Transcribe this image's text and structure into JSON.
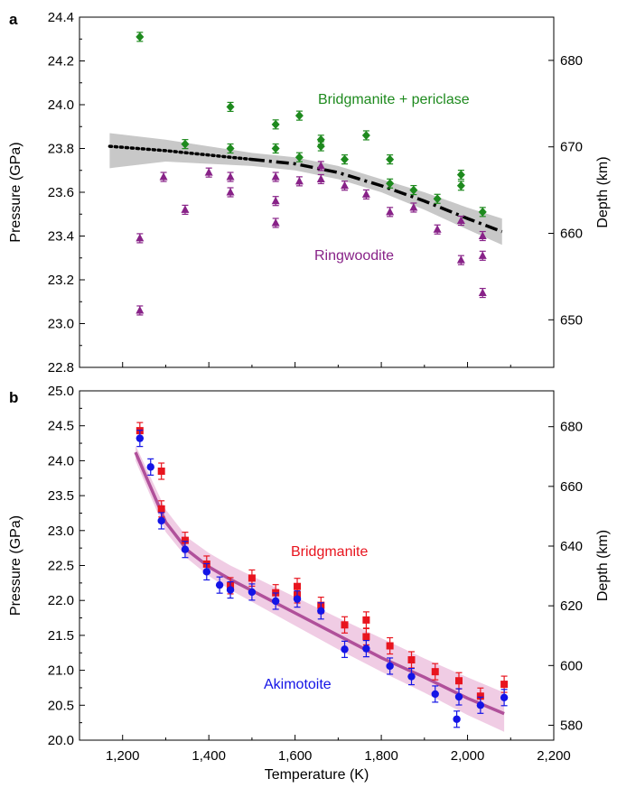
{
  "chart_data": [
    {
      "panel": "a",
      "type": "scatter",
      "xlabel": "",
      "ylabel": "Pressure (GPa)",
      "y2label": "Depth (km)",
      "xlim": [
        1100,
        2200
      ],
      "ylim": [
        22.8,
        24.4
      ],
      "y2lim": [
        644.5,
        685.0
      ],
      "xticks": [],
      "yticks": [
        22.8,
        23.0,
        23.2,
        23.4,
        23.6,
        23.8,
        24.0,
        24.2,
        24.4
      ],
      "ytick_labels": [
        "22.8",
        "23.0",
        "23.2",
        "23.4",
        "23.6",
        "23.8",
        "24.0",
        "24.2",
        "24.4"
      ],
      "y2ticks": [
        650,
        660,
        670,
        680
      ],
      "y2tick_labels": [
        "650",
        "660",
        "670",
        "680"
      ],
      "grid": false,
      "series": [
        {
          "name": "Bridgmanite + periclase",
          "marker": "diamond",
          "color": "#1e8a1e",
          "points": [
            [
              1240,
              24.31
            ],
            [
              1345,
              23.82
            ],
            [
              1450,
              23.99
            ],
            [
              1450,
              23.8
            ],
            [
              1555,
              23.91
            ],
            [
              1555,
              23.8
            ],
            [
              1610,
              23.95
            ],
            [
              1610,
              23.76
            ],
            [
              1660,
              23.84
            ],
            [
              1660,
              23.81
            ],
            [
              1715,
              23.75
            ],
            [
              1765,
              23.86
            ],
            [
              1820,
              23.75
            ],
            [
              1820,
              23.64
            ],
            [
              1875,
              23.61
            ],
            [
              1930,
              23.57
            ],
            [
              1985,
              23.68
            ],
            [
              1985,
              23.63
            ],
            [
              2035,
              23.51
            ]
          ]
        },
        {
          "name": "Ringwoodite",
          "marker": "triangle",
          "color": "#882288",
          "points": [
            [
              1240,
              23.39
            ],
            [
              1240,
              23.06
            ],
            [
              1295,
              23.67
            ],
            [
              1345,
              23.52
            ],
            [
              1400,
              23.69
            ],
            [
              1450,
              23.67
            ],
            [
              1450,
              23.6
            ],
            [
              1555,
              23.67
            ],
            [
              1555,
              23.56
            ],
            [
              1555,
              23.46
            ],
            [
              1610,
              23.65
            ],
            [
              1660,
              23.72
            ],
            [
              1660,
              23.66
            ],
            [
              1715,
              23.63
            ],
            [
              1765,
              23.59
            ],
            [
              1820,
              23.51
            ],
            [
              1875,
              23.53
            ],
            [
              1930,
              23.43
            ],
            [
              1985,
              23.47
            ],
            [
              1985,
              23.29
            ],
            [
              2035,
              23.4
            ],
            [
              2035,
              23.31
            ],
            [
              2035,
              23.14
            ]
          ]
        }
      ],
      "fit_line": {
        "style": "dotted-then-dashdot",
        "color": "#000000",
        "x": [
          1170,
          1300,
          1400,
          1500,
          1600,
          1700,
          1800,
          1900,
          2000,
          2080
        ],
        "y": [
          23.81,
          23.79,
          23.77,
          23.75,
          23.73,
          23.69,
          23.63,
          23.56,
          23.48,
          23.42
        ],
        "band_color": "#c8c8c8",
        "band_upper": [
          23.87,
          23.84,
          23.81,
          23.78,
          23.76,
          23.72,
          23.66,
          23.6,
          23.53,
          23.48
        ],
        "band_lower": [
          23.71,
          23.74,
          23.73,
          23.72,
          23.7,
          23.66,
          23.6,
          23.52,
          23.43,
          23.36
        ]
      },
      "annotations": [
        {
          "text": "Bridgmanite + periclase",
          "color": "#1e8a1e"
        },
        {
          "text": "Ringwoodite",
          "color": "#882288"
        }
      ]
    },
    {
      "panel": "b",
      "type": "scatter",
      "xlabel": "Temperature (K)",
      "ylabel": "Pressure (GPa)",
      "y2label": "Depth (km)",
      "xlim": [
        1100,
        2200
      ],
      "ylim": [
        20.0,
        25.0
      ],
      "y2lim": [
        575.0,
        692.0
      ],
      "xticks": [
        1200,
        1400,
        1600,
        1800,
        2000,
        2200
      ],
      "xtick_labels": [
        "1,200",
        "1,400",
        "1,600",
        "1,800",
        "2,000",
        "2,200"
      ],
      "yticks": [
        20.0,
        20.5,
        21.0,
        21.5,
        22.0,
        22.5,
        23.0,
        23.5,
        24.0,
        24.5,
        25.0
      ],
      "ytick_labels": [
        "20.0",
        "20.5",
        "21.0",
        "21.5",
        "22.0",
        "22.5",
        "23.0",
        "23.5",
        "24.0",
        "24.5",
        "25.0"
      ],
      "y2ticks": [
        580,
        600,
        620,
        640,
        660,
        680
      ],
      "y2tick_labels": [
        "580",
        "600",
        "620",
        "640",
        "660",
        "680"
      ],
      "grid": false,
      "series": [
        {
          "name": "Bridgmanite",
          "marker": "square",
          "color": "#e8141e",
          "points": [
            [
              1240,
              24.43
            ],
            [
              1290,
              23.85
            ],
            [
              1290,
              23.31
            ],
            [
              1345,
              22.86
            ],
            [
              1395,
              22.52
            ],
            [
              1450,
              22.21
            ],
            [
              1500,
              22.32
            ],
            [
              1555,
              22.11
            ],
            [
              1605,
              22.2
            ],
            [
              1605,
              22.08
            ],
            [
              1660,
              21.93
            ],
            [
              1715,
              21.65
            ],
            [
              1765,
              21.72
            ],
            [
              1765,
              21.48
            ],
            [
              1820,
              21.35
            ],
            [
              1870,
              21.15
            ],
            [
              1925,
              20.98
            ],
            [
              1980,
              20.85
            ],
            [
              2030,
              20.63
            ],
            [
              2085,
              20.8
            ]
          ]
        },
        {
          "name": "Akimotoite",
          "marker": "circle",
          "color": "#1414e6",
          "points": [
            [
              1240,
              24.32
            ],
            [
              1265,
              23.91
            ],
            [
              1290,
              23.14
            ],
            [
              1345,
              22.73
            ],
            [
              1395,
              22.41
            ],
            [
              1425,
              22.22
            ],
            [
              1450,
              22.15
            ],
            [
              1500,
              22.12
            ],
            [
              1555,
              21.99
            ],
            [
              1605,
              22.02
            ],
            [
              1660,
              21.85
            ],
            [
              1715,
              21.3
            ],
            [
              1765,
              21.31
            ],
            [
              1820,
              21.06
            ],
            [
              1870,
              20.91
            ],
            [
              1925,
              20.66
            ],
            [
              1975,
              20.3
            ],
            [
              1980,
              20.62
            ],
            [
              2030,
              20.5
            ],
            [
              2085,
              20.61
            ]
          ]
        }
      ],
      "fit_line": {
        "style": "solid",
        "color": "#b0509a",
        "x": [
          1230,
          1300,
          1350,
          1400,
          1450,
          1500,
          1600,
          1700,
          1800,
          1900,
          2000,
          2085
        ],
        "y": [
          24.12,
          23.12,
          22.72,
          22.48,
          22.3,
          22.14,
          21.82,
          21.5,
          21.18,
          20.9,
          20.6,
          20.38
        ],
        "band_color": "#f0cce4",
        "band_upper": [
          24.22,
          23.3,
          22.9,
          22.68,
          22.5,
          22.35,
          22.05,
          21.75,
          21.46,
          21.17,
          20.9,
          20.68
        ],
        "band_lower": [
          24.0,
          22.98,
          22.6,
          22.35,
          22.15,
          21.98,
          21.64,
          21.3,
          20.98,
          20.68,
          20.36,
          20.12
        ]
      },
      "annotations": [
        {
          "text": "Bridgmanite",
          "color": "#e8141e"
        },
        {
          "text": "Akimotoite",
          "color": "#1414e6"
        }
      ]
    }
  ]
}
